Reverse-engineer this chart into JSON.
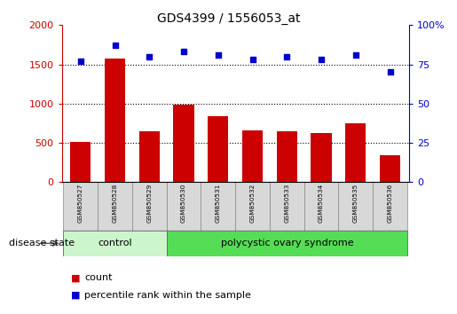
{
  "title": "GDS4399 / 1556053_at",
  "samples": [
    "GSM850527",
    "GSM850528",
    "GSM850529",
    "GSM850530",
    "GSM850531",
    "GSM850532",
    "GSM850533",
    "GSM850534",
    "GSM850535",
    "GSM850536"
  ],
  "counts": [
    510,
    1570,
    650,
    990,
    835,
    655,
    645,
    620,
    745,
    345
  ],
  "percentiles": [
    77,
    87,
    80,
    83,
    81,
    78,
    80,
    78,
    81,
    70
  ],
  "bar_color": "#cc0000",
  "dot_color": "#0000cc",
  "ylim_left": [
    0,
    2000
  ],
  "ylim_right": [
    0,
    100
  ],
  "yticks_left": [
    0,
    500,
    1000,
    1500,
    2000
  ],
  "yticks_right": [
    0,
    25,
    50,
    75,
    100
  ],
  "control_count": 3,
  "group1_label": "control",
  "group2_label": "polycystic ovary syndrome",
  "group1_color": "#ccf5cc",
  "group2_color": "#55dd55",
  "xlabel_label": "disease state",
  "legend_count_label": "count",
  "legend_pct_label": "percentile rank within the sample"
}
